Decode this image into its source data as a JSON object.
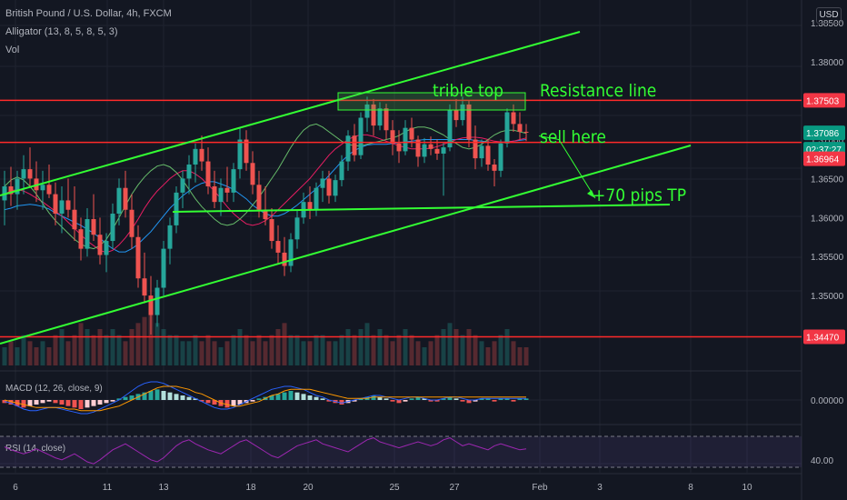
{
  "header": {
    "symbol_line": "British Pound / U.S. Dollar, 4h, FXCM",
    "indicator_alligator": "Alligator (13, 8, 5, 8, 5, 3)",
    "indicator_vol": "Vol",
    "currency_button": "USD"
  },
  "colors": {
    "background": "#131722",
    "up_candle": "#26a69a",
    "down_candle": "#ef5350",
    "red_line": "#ff2a2a",
    "green_line": "#33ff33",
    "jaw": "#2196f3",
    "teeth": "#e91e63",
    "lips": "#66bb6a",
    "price_tag_green": "#089981",
    "price_tag_red": "#f23645",
    "rsi": "#9c27b0",
    "macd": "#2962ff",
    "signal": "#ff9800"
  },
  "chart_data": [
    {
      "type": "candlestick",
      "x_tick_labels": [
        "6",
        "11",
        "13",
        "18",
        "20",
        "25",
        "27",
        "Feb",
        "3",
        "8",
        "10"
      ],
      "y_tick_labels": [
        "1.38500",
        "1.38000",
        "1.37500",
        "1.37000",
        "1.36500",
        "1.36000",
        "1.35500",
        "1.35000",
        "1.34500"
      ],
      "ylim": [
        1.3415,
        1.3872
      ],
      "price_tags": [
        {
          "label": "1.37503",
          "value": 1.37503,
          "color": "#f23645"
        },
        {
          "label": "1.37086",
          "value": 1.37086,
          "color": "#089981"
        },
        {
          "label": "02:37:27",
          "value": 1.3696,
          "color": "#089981"
        },
        {
          "label": "1.36964",
          "value": 1.36964,
          "color": "#f23645"
        },
        {
          "label": "1.34470",
          "value": 1.3447,
          "color": "#f23645"
        }
      ],
      "horizontal_lines": [
        {
          "name": "resistance",
          "value": 1.37503
        },
        {
          "name": "entry",
          "value": 1.36964
        },
        {
          "name": "support",
          "value": 1.3447
        }
      ],
      "annotations": [
        {
          "text": "trible top"
        },
        {
          "text": "Resistance line"
        },
        {
          "text": "sell here"
        },
        {
          "text": "+70 pips TP"
        }
      ],
      "candles_ohlc": [
        [
          1.3622,
          1.366,
          1.359,
          1.364
        ],
        [
          1.364,
          1.3665,
          1.3615,
          1.363
        ],
        [
          1.363,
          1.366,
          1.361,
          1.365
        ],
        [
          1.365,
          1.368,
          1.363,
          1.3662
        ],
        [
          1.3662,
          1.369,
          1.364,
          1.365
        ],
        [
          1.365,
          1.3672,
          1.362,
          1.3635
        ],
        [
          1.3635,
          1.366,
          1.361,
          1.3642
        ],
        [
          1.3642,
          1.3668,
          1.3625,
          1.363
        ],
        [
          1.363,
          1.3645,
          1.359,
          1.3605
        ],
        [
          1.3605,
          1.364,
          1.358,
          1.3622
        ],
        [
          1.3622,
          1.365,
          1.36,
          1.361
        ],
        [
          1.361,
          1.364,
          1.357,
          1.3585
        ],
        [
          1.3585,
          1.36,
          1.3545,
          1.356
        ],
        [
          1.356,
          1.3612,
          1.355,
          1.3598
        ],
        [
          1.3598,
          1.363,
          1.357,
          1.3578
        ],
        [
          1.3578,
          1.36,
          1.354,
          1.3552
        ],
        [
          1.3552,
          1.358,
          1.353,
          1.357
        ],
        [
          1.357,
          1.3618,
          1.356,
          1.3605
        ],
        [
          1.3605,
          1.365,
          1.359,
          1.3638
        ],
        [
          1.3638,
          1.366,
          1.36,
          1.361
        ],
        [
          1.361,
          1.363,
          1.356,
          1.3575
        ],
        [
          1.3575,
          1.359,
          1.351,
          1.3522
        ],
        [
          1.3522,
          1.3555,
          1.349,
          1.35
        ],
        [
          1.35,
          1.3525,
          1.345,
          1.3475
        ],
        [
          1.3475,
          1.352,
          1.346,
          1.351
        ],
        [
          1.351,
          1.357,
          1.35,
          1.356
        ],
        [
          1.356,
          1.36,
          1.354,
          1.359
        ],
        [
          1.359,
          1.364,
          1.358,
          1.3632
        ],
        [
          1.3632,
          1.366,
          1.3612,
          1.365
        ],
        [
          1.365,
          1.368,
          1.363,
          1.3668
        ],
        [
          1.3668,
          1.3695,
          1.3645,
          1.3688
        ],
        [
          1.3688,
          1.3705,
          1.366,
          1.3672
        ],
        [
          1.3672,
          1.369,
          1.363,
          1.364
        ],
        [
          1.364,
          1.366,
          1.3612,
          1.362
        ],
        [
          1.362,
          1.365,
          1.3602,
          1.3638
        ],
        [
          1.3638,
          1.3665,
          1.362,
          1.3632
        ],
        [
          1.3632,
          1.367,
          1.362,
          1.3662
        ],
        [
          1.3662,
          1.3715,
          1.365,
          1.37
        ],
        [
          1.37,
          1.3712,
          1.366,
          1.367
        ],
        [
          1.367,
          1.3685,
          1.363,
          1.3642
        ],
        [
          1.3642,
          1.366,
          1.36,
          1.361
        ],
        [
          1.361,
          1.364,
          1.359,
          1.3598
        ],
        [
          1.3598,
          1.3612,
          1.356,
          1.357
        ],
        [
          1.357,
          1.359,
          1.354,
          1.3555
        ],
        [
          1.3555,
          1.3575,
          1.3525,
          1.3538
        ],
        [
          1.3538,
          1.358,
          1.353,
          1.3572
        ],
        [
          1.3572,
          1.361,
          1.356,
          1.36
        ],
        [
          1.36,
          1.3632,
          1.3592,
          1.362
        ],
        [
          1.362,
          1.364,
          1.3598,
          1.361
        ],
        [
          1.361,
          1.3645,
          1.3602,
          1.3638
        ],
        [
          1.3638,
          1.366,
          1.362,
          1.365
        ],
        [
          1.365,
          1.366,
          1.3618,
          1.3628
        ],
        [
          1.3628,
          1.3655,
          1.362,
          1.3648
        ],
        [
          1.3648,
          1.368,
          1.364,
          1.3672
        ],
        [
          1.3672,
          1.3712,
          1.366,
          1.3705
        ],
        [
          1.3705,
          1.372,
          1.3672,
          1.368
        ],
        [
          1.368,
          1.3735,
          1.3675,
          1.3728
        ],
        [
          1.3728,
          1.3755,
          1.371,
          1.3745
        ],
        [
          1.3745,
          1.3752,
          1.3705,
          1.3718
        ],
        [
          1.3718,
          1.3748,
          1.3712,
          1.374
        ],
        [
          1.374,
          1.3746,
          1.37,
          1.3712
        ],
        [
          1.3712,
          1.3725,
          1.368,
          1.3695
        ],
        [
          1.3695,
          1.3712,
          1.367,
          1.3685
        ],
        [
          1.3685,
          1.3725,
          1.368,
          1.3715
        ],
        [
          1.3715,
          1.3728,
          1.369,
          1.37
        ],
        [
          1.37,
          1.3705,
          1.3665,
          1.3678
        ],
        [
          1.3678,
          1.3702,
          1.367,
          1.3694
        ],
        [
          1.3694,
          1.3704,
          1.368,
          1.3688
        ],
        [
          1.3688,
          1.37,
          1.3674,
          1.3682
        ],
        [
          1.3682,
          1.3696,
          1.3628,
          1.369
        ],
        [
          1.369,
          1.3745,
          1.3685,
          1.3738
        ],
        [
          1.3738,
          1.3752,
          1.3716,
          1.3725
        ],
        [
          1.3725,
          1.3755,
          1.3718,
          1.3745
        ],
        [
          1.3745,
          1.375,
          1.369,
          1.37
        ],
        [
          1.37,
          1.3718,
          1.3662,
          1.3676
        ],
        [
          1.3676,
          1.37,
          1.3665,
          1.3692
        ],
        [
          1.3692,
          1.37,
          1.366,
          1.3668
        ],
        [
          1.3668,
          1.3675,
          1.364,
          1.366
        ],
        [
          1.366,
          1.37,
          1.3652,
          1.3695
        ],
        [
          1.3695,
          1.374,
          1.369,
          1.3735
        ],
        [
          1.3735,
          1.3745,
          1.371,
          1.372
        ],
        [
          1.372,
          1.3735,
          1.37,
          1.371
        ],
        [
          1.371,
          1.372,
          1.3698,
          1.3709
        ]
      ],
      "volume": [
        3,
        4,
        3,
        5,
        4,
        3,
        4,
        3,
        5,
        6,
        4,
        5,
        7,
        6,
        5,
        6,
        5,
        6,
        5,
        4,
        6,
        7,
        8,
        9,
        7,
        6,
        5,
        5,
        4,
        4,
        5,
        4,
        5,
        4,
        3,
        4,
        5,
        6,
        5,
        4,
        5,
        4,
        5,
        6,
        7,
        5,
        5,
        4,
        4,
        5,
        5,
        4,
        4,
        5,
        6,
        5,
        6,
        7,
        5,
        6,
        5,
        4,
        5,
        6,
        5,
        4,
        3,
        4,
        5,
        6,
        7,
        6,
        5,
        6,
        5,
        4,
        3,
        4,
        5,
        6,
        4,
        3,
        3
      ],
      "alligator": {
        "jaw": [
          1.361,
          1.3612,
          1.3615,
          1.3616,
          1.3617,
          1.3616,
          1.3614,
          1.3611,
          1.3606,
          1.3602,
          1.3598,
          1.3594,
          1.359,
          1.3585,
          1.358,
          1.3574,
          1.3566,
          1.356,
          1.3556,
          1.3556,
          1.356,
          1.3566,
          1.3574,
          1.3582,
          1.3592,
          1.3602,
          1.3612,
          1.362,
          1.3628,
          1.3634,
          1.364,
          1.3644,
          1.3646,
          1.3646,
          1.3643,
          1.364,
          1.3636,
          1.363,
          1.3624,
          1.3616,
          1.361,
          1.3605,
          1.3602,
          1.3602,
          1.3605,
          1.361,
          1.3616,
          1.3623,
          1.363,
          1.3637,
          1.3645,
          1.3654,
          1.3663,
          1.3672,
          1.368,
          1.3686,
          1.369,
          1.3693,
          1.3694,
          1.3694,
          1.3694,
          1.3695,
          1.3696,
          1.3697,
          1.3698,
          1.3699,
          1.37,
          1.37,
          1.37,
          1.37,
          1.37,
          1.37,
          1.37,
          1.37,
          1.3699,
          1.3698,
          1.3697,
          1.3696,
          1.3696,
          1.3697,
          1.3698,
          1.3699,
          1.37
        ],
        "teeth": [
          1.363,
          1.3634,
          1.3636,
          1.3634,
          1.363,
          1.3625,
          1.362,
          1.3614,
          1.3608,
          1.3602,
          1.3594,
          1.3586,
          1.3578,
          1.357,
          1.3564,
          1.3558,
          1.3555,
          1.3558,
          1.3565,
          1.3574,
          1.3585,
          1.3598,
          1.3612,
          1.3624,
          1.3634,
          1.3642,
          1.365,
          1.3656,
          1.366,
          1.366,
          1.3656,
          1.365,
          1.3642,
          1.3634,
          1.3624,
          1.3614,
          1.3605,
          1.3598,
          1.3592,
          1.359,
          1.3592,
          1.3596,
          1.3602,
          1.361,
          1.3618,
          1.3626,
          1.3634,
          1.3642,
          1.365,
          1.366,
          1.367,
          1.368,
          1.3688,
          1.3694,
          1.37,
          1.3704,
          1.3706,
          1.3706,
          1.3704,
          1.3701,
          1.3698,
          1.3695,
          1.3692,
          1.369,
          1.3688,
          1.3688,
          1.3688,
          1.3689,
          1.3691,
          1.3694,
          1.3697,
          1.37,
          1.3702,
          1.3703,
          1.3703,
          1.3702,
          1.37,
          1.3698,
          1.3697,
          1.3697,
          1.3698,
          1.37,
          1.3702
        ],
        "lips": [
          1.364,
          1.3648,
          1.3652,
          1.3648,
          1.364,
          1.363,
          1.3618,
          1.3606,
          1.3596,
          1.3588,
          1.358,
          1.3572,
          1.3566,
          1.3562,
          1.356,
          1.3564,
          1.3572,
          1.3585,
          1.36,
          1.3615,
          1.363,
          1.3642,
          1.3652,
          1.366,
          1.3666,
          1.3668,
          1.3665,
          1.3658,
          1.3648,
          1.3636,
          1.3624,
          1.3614,
          1.3606,
          1.3598,
          1.3592,
          1.359,
          1.3592,
          1.3598,
          1.3606,
          1.3616,
          1.3626,
          1.3638,
          1.365,
          1.3662,
          1.3676,
          1.369,
          1.3702,
          1.3712,
          1.3718,
          1.372,
          1.3716,
          1.371,
          1.3704,
          1.3698,
          1.3694,
          1.3692,
          1.3692,
          1.3694,
          1.3696,
          1.3698,
          1.37,
          1.3702,
          1.3705,
          1.371,
          1.3714,
          1.3716,
          1.3716,
          1.3714,
          1.371,
          1.3706,
          1.37,
          1.3695,
          1.369,
          1.3688,
          1.369,
          1.3694,
          1.37,
          1.3706,
          1.371,
          1.3712,
          1.3712,
          1.371,
          1.3708
        ]
      }
    },
    {
      "type": "bar",
      "title": "MACD (12, 26, close, 9)",
      "y_tick_labels": [
        "0.00000"
      ],
      "histogram": [
        -2,
        -3,
        -4,
        -5,
        -4,
        -3,
        -2,
        -1,
        -2,
        -3,
        -4,
        -5,
        -6,
        -5,
        -4,
        -3,
        -2,
        -1,
        1,
        2,
        3,
        4,
        5,
        6,
        7,
        6,
        5,
        4,
        3,
        2,
        1,
        -1,
        -2,
        -3,
        -4,
        -5,
        -4,
        -3,
        -2,
        -1,
        1,
        2,
        3,
        4,
        5,
        6,
        5,
        4,
        3,
        2,
        1,
        -1,
        -2,
        -3,
        -2,
        -1,
        1,
        2,
        3,
        2,
        1,
        -1,
        -2,
        -1,
        1,
        2,
        1,
        -1,
        -1,
        1,
        2,
        1,
        -1,
        -2,
        -1,
        1,
        1,
        -1,
        1,
        1,
        -1,
        1,
        1
      ],
      "macd": [
        -1,
        -2,
        -4,
        -6,
        -7,
        -7,
        -6,
        -5,
        -5,
        -6,
        -7,
        -8,
        -9,
        -9,
        -8,
        -6,
        -4,
        -2,
        0,
        3,
        6,
        9,
        11,
        12,
        12,
        11,
        9,
        7,
        5,
        3,
        1,
        -1,
        -3,
        -5,
        -6,
        -6,
        -5,
        -3,
        -1,
        1,
        3,
        5,
        7,
        8,
        9,
        9,
        8,
        7,
        5,
        3,
        2,
        0,
        -1,
        -2,
        -1,
        0,
        1,
        2,
        3,
        3,
        2,
        1,
        0,
        1,
        2,
        2,
        1,
        0,
        0,
        1,
        2,
        2,
        1,
        0,
        0,
        1,
        1,
        1,
        1,
        1,
        1,
        1,
        1
      ],
      "signal": [
        0,
        -1,
        -2,
        -3,
        -4,
        -5,
        -5,
        -5,
        -5,
        -5,
        -6,
        -6,
        -7,
        -7,
        -7,
        -7,
        -6,
        -5,
        -4,
        -2,
        0,
        2,
        4,
        6,
        8,
        9,
        9,
        9,
        8,
        7,
        5,
        4,
        2,
        0,
        -2,
        -3,
        -4,
        -4,
        -3,
        -2,
        -1,
        1,
        3,
        4,
        6,
        7,
        7,
        7,
        7,
        6,
        5,
        4,
        3,
        2,
        1,
        1,
        1,
        1,
        2,
        2,
        2,
        2,
        2,
        2,
        2,
        2,
        2,
        2,
        2,
        2,
        2,
        2,
        2,
        2,
        2,
        2,
        2,
        2,
        2,
        2,
        2,
        2,
        2
      ]
    },
    {
      "type": "line",
      "title": "RSI (14, close)",
      "y_tick_labels": [
        "40.00"
      ],
      "values": [
        55,
        52,
        50,
        48,
        50,
        53,
        50,
        47,
        44,
        42,
        45,
        48,
        44,
        40,
        38,
        42,
        47,
        52,
        55,
        58,
        54,
        50,
        46,
        42,
        40,
        44,
        50,
        56,
        60,
        62,
        58,
        55,
        52,
        50,
        48,
        52,
        56,
        60,
        62,
        58,
        54,
        50,
        46,
        44,
        48,
        52,
        56,
        58,
        60,
        62,
        58,
        56,
        54,
        52,
        50,
        54,
        58,
        62,
        64,
        60,
        58,
        56,
        54,
        56,
        58,
        60,
        58,
        56,
        58,
        62,
        64,
        60,
        56,
        58,
        56,
        54,
        52,
        56,
        58,
        56,
        54,
        52,
        53
      ]
    }
  ]
}
